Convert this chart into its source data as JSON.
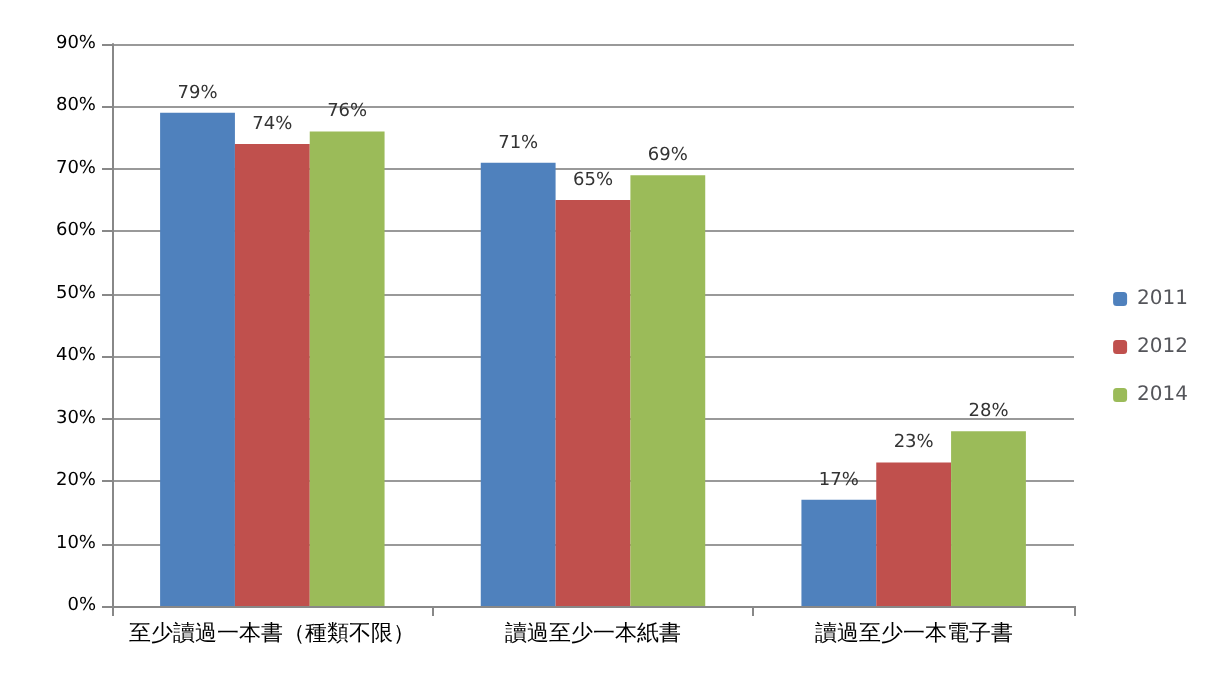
{
  "chart_data": {
    "type": "bar",
    "categories": [
      "至少讀過一本書（種類不限）",
      "讀過至少一本紙書",
      "讀過至少一本電子書"
    ],
    "series": [
      {
        "name": "2011",
        "color": "#4f81bd",
        "values": [
          79,
          71,
          17
        ],
        "value_labels": [
          "79%",
          "71%",
          "17%"
        ]
      },
      {
        "name": "2012",
        "color": "#c0504d",
        "values": [
          74,
          65,
          23
        ],
        "value_labels": [
          "74%",
          "65%",
          "23%"
        ]
      },
      {
        "name": "2014",
        "color": "#9bbb59",
        "values": [
          76,
          69,
          28
        ],
        "value_labels": [
          "76%",
          "69%",
          "28%"
        ]
      }
    ],
    "ylim": [
      0,
      90
    ],
    "yticks": [
      {
        "value": 0,
        "label": "0%"
      },
      {
        "value": 10,
        "label": "10%"
      },
      {
        "value": 20,
        "label": "20%"
      },
      {
        "value": 30,
        "label": "30%"
      },
      {
        "value": 40,
        "label": "40%"
      },
      {
        "value": 50,
        "label": "50%"
      },
      {
        "value": 60,
        "label": "60%"
      },
      {
        "value": 70,
        "label": "70%"
      },
      {
        "value": 80,
        "label": "80%"
      },
      {
        "value": 90,
        "label": "90%"
      }
    ],
    "grid": "y",
    "legend": "right"
  }
}
